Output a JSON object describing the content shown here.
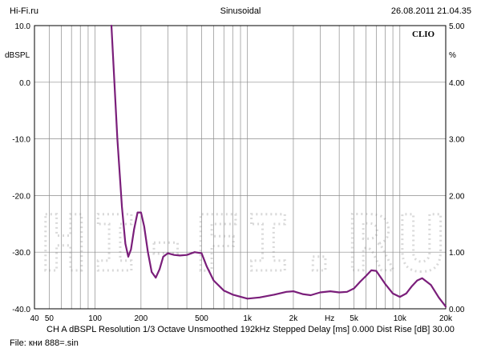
{
  "header": {
    "left": "Hi-Fi.ru",
    "center": "Sinusoidal",
    "right": "26.08.2011 21.04.35"
  },
  "brand": "CLIO",
  "watermark": "HI-FI.RU",
  "footer": {
    "info": "CH A   dBSPL   Resolution 1/3 Octave   Unsmoothed   192kHz   Stepped    Delay [ms] 0.000    Dist Rise [dB] 30.00",
    "file": "File: кни 888=.sin"
  },
  "colors": {
    "curve": "#7a1e7a",
    "grid": "#8c8c8c",
    "watermark": "#d9d9d9"
  },
  "chart_data": {
    "type": "line",
    "title": "Sinusoidal",
    "xscale": "log",
    "xlim": [
      40,
      20000
    ],
    "xticks": [
      {
        "v": 40,
        "label": "40"
      },
      {
        "v": 50,
        "label": "50"
      },
      {
        "v": 100,
        "label": "100"
      },
      {
        "v": 200,
        "label": "200"
      },
      {
        "v": 500,
        "label": "500"
      },
      {
        "v": 1000,
        "label": "1k"
      },
      {
        "v": 2000,
        "label": "2k"
      },
      {
        "v": 5000,
        "label": "5k"
      },
      {
        "v": 10000,
        "label": "10k"
      },
      {
        "v": 20000,
        "label": "20k"
      }
    ],
    "xunit": "Hz",
    "ylim": [
      -40,
      10
    ],
    "yticks": [
      "10.0",
      "0.0",
      "-10.0",
      "-20.0",
      "-30.0",
      "-40.0"
    ],
    "ylabel": "dBSPL",
    "y2lim": [
      0,
      5
    ],
    "y2ticks": [
      "5.00",
      "4.00",
      "3.00",
      "2.00",
      "1.00",
      "0.00"
    ],
    "y2label": "%",
    "grid": true,
    "series": [
      {
        "x": [
          128,
          140,
          150,
          158,
          165,
          172,
          180,
          190,
          200,
          210,
          222,
          235,
          250,
          265,
          280,
          300,
          330,
          360,
          400,
          450,
          500,
          540,
          600,
          700,
          800,
          1000,
          1200,
          1500,
          1800,
          2000,
          2300,
          2600,
          3000,
          3500,
          4000,
          4500,
          5000,
          5500,
          6000,
          6500,
          7000,
          8000,
          9000,
          10000,
          11000,
          12000,
          13000,
          14000,
          16000,
          18000,
          20000
        ],
        "y": [
          10,
          -10,
          -22,
          -28.5,
          -30.8,
          -29.5,
          -26,
          -23,
          -23,
          -25.5,
          -30,
          -33.5,
          -34.5,
          -33,
          -30.8,
          -30.2,
          -30.5,
          -30.6,
          -30.5,
          -30.0,
          -30.2,
          -32.5,
          -35.0,
          -36.8,
          -37.5,
          -38.2,
          -38.0,
          -37.5,
          -37.0,
          -36.9,
          -37.4,
          -37.6,
          -37.1,
          -36.9,
          -37.1,
          -37.0,
          -36.4,
          -35.2,
          -34.2,
          -33.2,
          -33.3,
          -35.6,
          -37.3,
          -37.9,
          -37.3,
          -36.0,
          -35.0,
          -34.6,
          -35.8,
          -38.0,
          -39.6
        ]
      }
    ]
  }
}
